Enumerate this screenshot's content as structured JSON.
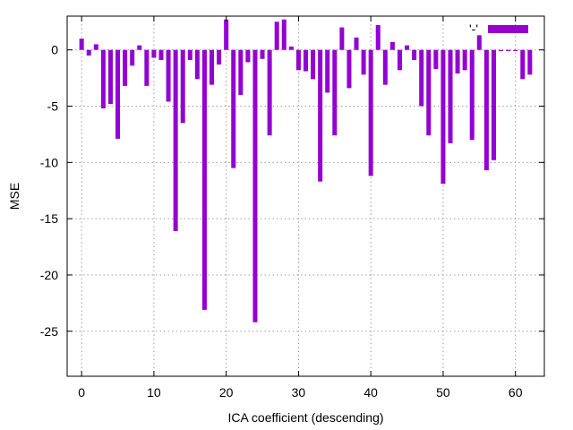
{
  "chart_data": {
    "type": "bar",
    "title": "",
    "xlabel": "ICA coefficient (descending)",
    "ylabel": "MSE",
    "xlim": [
      -2,
      64
    ],
    "ylim": [
      -29,
      3
    ],
    "xticks": [
      0,
      10,
      20,
      30,
      40,
      50,
      60
    ],
    "yticks": [
      0,
      -5,
      -10,
      -15,
      -20,
      -25
    ],
    "grid": true,
    "legend": {
      "placement": "top-right",
      "entries": [
        "'-'"
      ]
    },
    "series": [
      {
        "color": "#9400d3",
        "x": [
          0,
          1,
          2,
          3,
          4,
          5,
          6,
          7,
          8,
          9,
          10,
          11,
          12,
          13,
          14,
          15,
          16,
          17,
          18,
          19,
          20,
          21,
          22,
          23,
          24,
          25,
          26,
          27,
          28,
          29,
          30,
          31,
          32,
          33,
          34,
          35,
          36,
          37,
          38,
          39,
          40,
          41,
          42,
          43,
          44,
          45,
          46,
          47,
          48,
          49,
          50,
          51,
          52,
          53,
          54,
          55,
          56,
          57,
          58,
          59,
          60,
          61,
          62
        ],
        "values": [
          1.0,
          -0.5,
          0.5,
          -5.2,
          -4.8,
          -7.9,
          -3.2,
          -1.4,
          0.4,
          -3.2,
          -0.7,
          -0.9,
          -4.6,
          -16.1,
          -6.5,
          -0.9,
          -2.6,
          -23.1,
          -3.1,
          -1.3,
          2.7,
          -10.5,
          -4.0,
          -1.1,
          -24.2,
          -0.8,
          -7.6,
          2.5,
          2.7,
          0.3,
          -1.8,
          -1.9,
          -2.6,
          -11.7,
          -3.8,
          -7.6,
          2.0,
          -3.4,
          1.1,
          -2.2,
          -11.2,
          2.2,
          -3.1,
          0.7,
          -1.8,
          0.4,
          -0.9,
          -5.0,
          -7.6,
          -1.7,
          -11.9,
          -8.3,
          -2.1,
          -1.8,
          -8.0,
          1.3,
          -10.7,
          -9.8,
          -0.1,
          -0.1,
          -0.1,
          -2.6,
          -2.2
        ]
      }
    ]
  }
}
